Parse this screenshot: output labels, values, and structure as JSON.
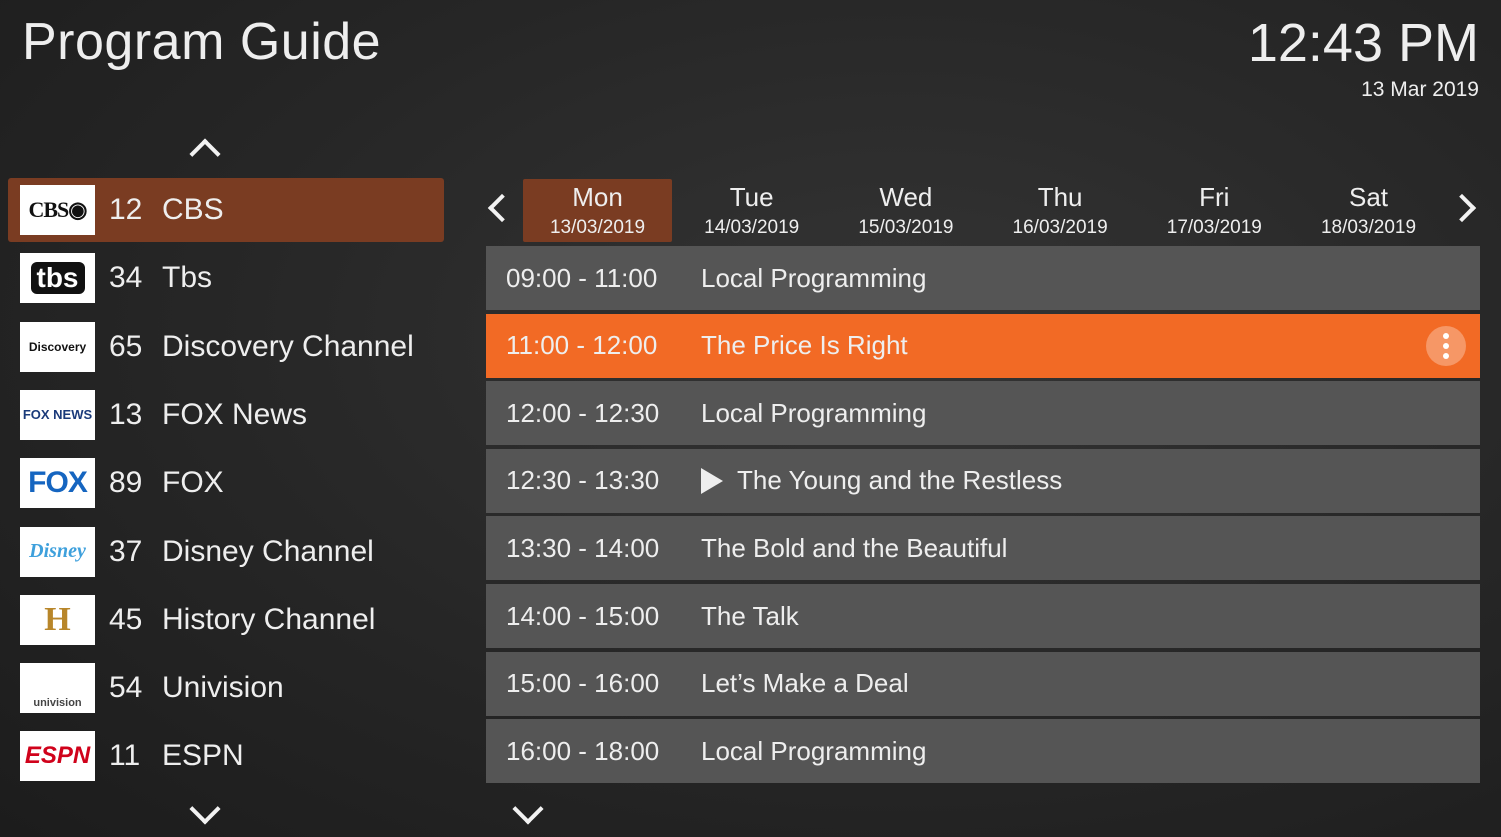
{
  "header": {
    "title": "Program Guide",
    "time": "12:43 PM",
    "date": "13 Mar 2019"
  },
  "colors": {
    "selected_channel": "#7a3c22",
    "selected_program": "#f26a25",
    "program_row": "#555555"
  },
  "channels": [
    {
      "number": "12",
      "name": "CBS",
      "logo": "CBS◉",
      "selected": true
    },
    {
      "number": "34",
      "name": "Tbs",
      "logo": "tbs"
    },
    {
      "number": "65",
      "name": "Discovery Channel",
      "logo": "Discovery"
    },
    {
      "number": "13",
      "name": "FOX News",
      "logo": "FOX NEWS"
    },
    {
      "number": "89",
      "name": "FOX",
      "logo": "FOX"
    },
    {
      "number": "37",
      "name": "Disney Channel",
      "logo": "Disney"
    },
    {
      "number": "45",
      "name": "History Channel",
      "logo": "H"
    },
    {
      "number": "54",
      "name": "Univision",
      "logo": "univision"
    },
    {
      "number": "11",
      "name": "ESPN",
      "logo": "ESPN"
    }
  ],
  "days": [
    {
      "day": "Mon",
      "date": "13/03/2019",
      "selected": true
    },
    {
      "day": "Tue",
      "date": "14/03/2019"
    },
    {
      "day": "Wed",
      "date": "15/03/2019"
    },
    {
      "day": "Thu",
      "date": "16/03/2019"
    },
    {
      "day": "Fri",
      "date": "17/03/2019"
    },
    {
      "day": "Sat",
      "date": "18/03/2019"
    }
  ],
  "programs": [
    {
      "time": "09:00 - 11:00",
      "title": "Local Programming"
    },
    {
      "time": "11:00 - 12:00",
      "title": "The Price Is Right",
      "selected": true
    },
    {
      "time": "12:00 - 12:30",
      "title": "Local Programming"
    },
    {
      "time": "12:30 - 13:30",
      "title": "The Young and the Restless",
      "playing": true
    },
    {
      "time": "13:30 - 14:00",
      "title": "The Bold and the Beautiful"
    },
    {
      "time": "14:00 - 15:00",
      "title": "The Talk"
    },
    {
      "time": "15:00 - 16:00",
      "title": "Let’s Make a Deal"
    },
    {
      "time": "16:00 - 18:00",
      "title": "Local Programming"
    }
  ]
}
